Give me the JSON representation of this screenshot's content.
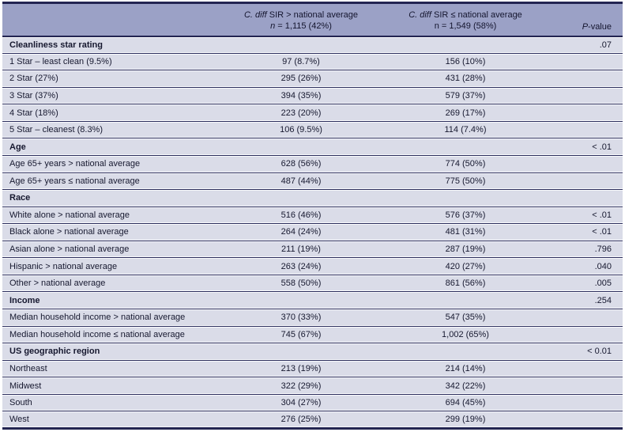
{
  "table": {
    "header": {
      "col2": {
        "cdiff": "C. diff",
        "title": " SIR > national average",
        "n_italic": "n",
        "n_rest": " = 1,115 (42%)"
      },
      "col3": {
        "cdiff": "C. diff",
        "title": " SIR ≤ national average",
        "n_line": "n = 1,549 (58%)"
      },
      "pvalue": {
        "p": "P",
        "rest": "-value"
      }
    },
    "sections": [
      {
        "title": "Cleanliness star rating",
        "p": ".07",
        "rows": [
          {
            "label": "1 Star – least clean (9.5%)",
            "c1": "97 (8.7%)",
            "c2": "156 (10%)",
            "p": ""
          },
          {
            "label": "2 Star (27%)",
            "c1": "295 (26%)",
            "c2": "431 (28%)",
            "p": ""
          },
          {
            "label": "3 Star (37%)",
            "c1": "394 (35%)",
            "c2": "579 (37%)",
            "p": ""
          },
          {
            "label": "4 Star (18%)",
            "c1": "223 (20%)",
            "c2": "269 (17%)",
            "p": ""
          },
          {
            "label": "5 Star – cleanest (8.3%)",
            "c1": "106 (9.5%)",
            "c2": "114 (7.4%)",
            "p": ""
          }
        ]
      },
      {
        "title": "Age",
        "p": "< .01",
        "rows": [
          {
            "label": "Age 65+ years > national average",
            "c1": "628 (56%)",
            "c2": "774 (50%)",
            "p": ""
          },
          {
            "label": "Age 65+ years ≤ national average",
            "c1": "487 (44%)",
            "c2": "775 (50%)",
            "p": ""
          }
        ]
      },
      {
        "title": "Race",
        "p": "",
        "rows": [
          {
            "label": "White alone > national average",
            "c1": "516 (46%)",
            "c2": "576 (37%)",
            "p": "< .01"
          },
          {
            "label": "Black alone > national average",
            "c1": "264 (24%)",
            "c2": "481 (31%)",
            "p": "< .01"
          },
          {
            "label": "Asian alone > national average",
            "c1": "211 (19%)",
            "c2": "287 (19%)",
            "p": ".796"
          },
          {
            "label": "Hispanic > national average",
            "c1": "263 (24%)",
            "c2": "420 (27%)",
            "p": ".040"
          },
          {
            "label": "Other > national average",
            "c1": "558 (50%)",
            "c2": "861 (56%)",
            "p": ".005"
          }
        ]
      },
      {
        "title": "Income",
        "p": ".254",
        "rows": [
          {
            "label": "Median household income > national average",
            "c1": "370 (33%)",
            "c2": "547 (35%)",
            "p": ""
          },
          {
            "label": "Median household income ≤ national average",
            "c1": "745 (67%)",
            "c2": "1,002 (65%)",
            "p": ""
          }
        ]
      },
      {
        "title": "US geographic region",
        "p": "< 0.01",
        "rows": [
          {
            "label": "Northeast",
            "c1": "213 (19%)",
            "c2": "214 (14%)",
            "p": ""
          },
          {
            "label": "Midwest",
            "c1": "322 (29%)",
            "c2": "342 (22%)",
            "p": ""
          },
          {
            "label": "South",
            "c1": "304 (27%)",
            "c2": "694 (45%)",
            "p": ""
          },
          {
            "label": "West",
            "c1": "276 (25%)",
            "c2": "299 (19%)",
            "p": ""
          }
        ]
      }
    ]
  }
}
